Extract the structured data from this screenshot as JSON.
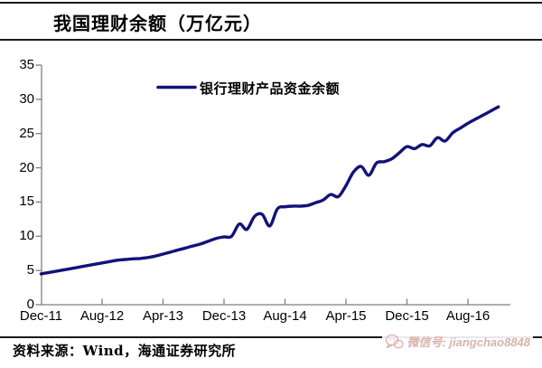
{
  "header": {
    "title": "我国理财余额（万亿元）"
  },
  "chart_data": {
    "type": "line",
    "title": "我国理财余额（万亿元）",
    "unit": "万亿元",
    "xlabel": "",
    "ylabel": "",
    "grid": false,
    "legend": [
      "银行理财产品资金余额"
    ],
    "legend_position": "top-center",
    "ylim": [
      0,
      35
    ],
    "y_ticks": [
      0,
      5,
      10,
      15,
      20,
      25,
      30,
      35
    ],
    "x_tick_labels": [
      "Dec-11",
      "Aug-12",
      "Apr-13",
      "Dec-13",
      "Aug-14",
      "Apr-15",
      "Dec-15",
      "Aug-16"
    ],
    "x_tick_month_index": [
      0,
      8,
      16,
      24,
      32,
      40,
      48,
      56
    ],
    "series": [
      {
        "name": "银行理财产品资金余额",
        "color": "#12127a",
        "x": [
          "Dec-11",
          "Jan-12",
          "Feb-12",
          "Mar-12",
          "Apr-12",
          "May-12",
          "Jun-12",
          "Jul-12",
          "Aug-12",
          "Sep-12",
          "Oct-12",
          "Nov-12",
          "Dec-12",
          "Jan-13",
          "Feb-13",
          "Mar-13",
          "Apr-13",
          "May-13",
          "Jun-13",
          "Jul-13",
          "Aug-13",
          "Sep-13",
          "Oct-13",
          "Nov-13",
          "Dec-13",
          "Jan-14",
          "Feb-14",
          "Mar-14",
          "Apr-14",
          "May-14",
          "Jun-14",
          "Jul-14",
          "Aug-14",
          "Sep-14",
          "Oct-14",
          "Nov-14",
          "Dec-14",
          "Jan-15",
          "Feb-15",
          "Mar-15",
          "Apr-15",
          "May-15",
          "Jun-15",
          "Jul-15",
          "Aug-15",
          "Sep-15",
          "Oct-15",
          "Nov-15",
          "Dec-15",
          "Jan-16",
          "Feb-16",
          "Mar-16",
          "Apr-16",
          "May-16",
          "Jun-16",
          "Jul-16",
          "Aug-16",
          "Sep-16",
          "Oct-16",
          "Nov-16",
          "Dec-16"
        ],
        "values": [
          4.5,
          4.7,
          4.9,
          5.1,
          5.3,
          5.5,
          5.7,
          5.9,
          6.1,
          6.3,
          6.5,
          6.6,
          6.7,
          6.75,
          6.9,
          7.1,
          7.4,
          7.7,
          8.0,
          8.3,
          8.6,
          8.9,
          9.3,
          9.7,
          9.9,
          10.0,
          11.8,
          11.0,
          12.9,
          13.2,
          11.5,
          14.0,
          14.3,
          14.4,
          14.4,
          14.5,
          14.9,
          15.3,
          16.1,
          15.8,
          17.4,
          19.4,
          20.2,
          18.9,
          20.7,
          20.9,
          21.3,
          22.2,
          23.1,
          22.8,
          23.4,
          23.2,
          24.4,
          23.9,
          25.1,
          25.8,
          26.5,
          27.1,
          27.7,
          28.3,
          28.9
        ]
      }
    ]
  },
  "footer": {
    "source": "资料来源：Wind，海通证券研究所"
  },
  "watermark": {
    "icon": "wechat-icon",
    "text": "微信号: jiangchao8848"
  },
  "colors": {
    "line": "#12127a",
    "axis": "#7f7f7f",
    "text": "#000000",
    "watermark": "#d9b2a9",
    "rule": "#1a1a1a"
  }
}
